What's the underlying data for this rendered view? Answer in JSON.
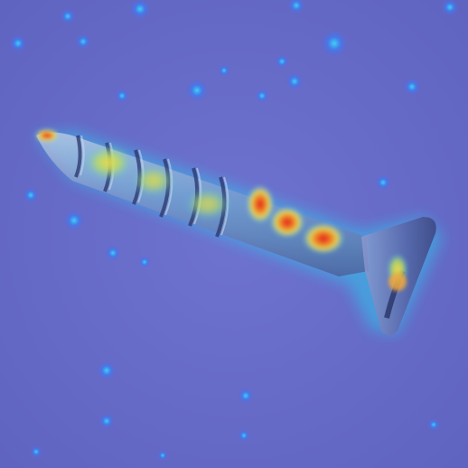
{
  "image": {
    "subject": "screw",
    "overlay": "heatmap",
    "colors": {
      "background": "#6a6fcb",
      "background_dark": "#5f64c0",
      "cold": "#3d5cf0",
      "cool": "#29c7f2",
      "warm": "#f2e04a",
      "hot": "#e8272a",
      "metal_light": "#b9c2d8",
      "metal_dark": "#4d5891"
    }
  }
}
